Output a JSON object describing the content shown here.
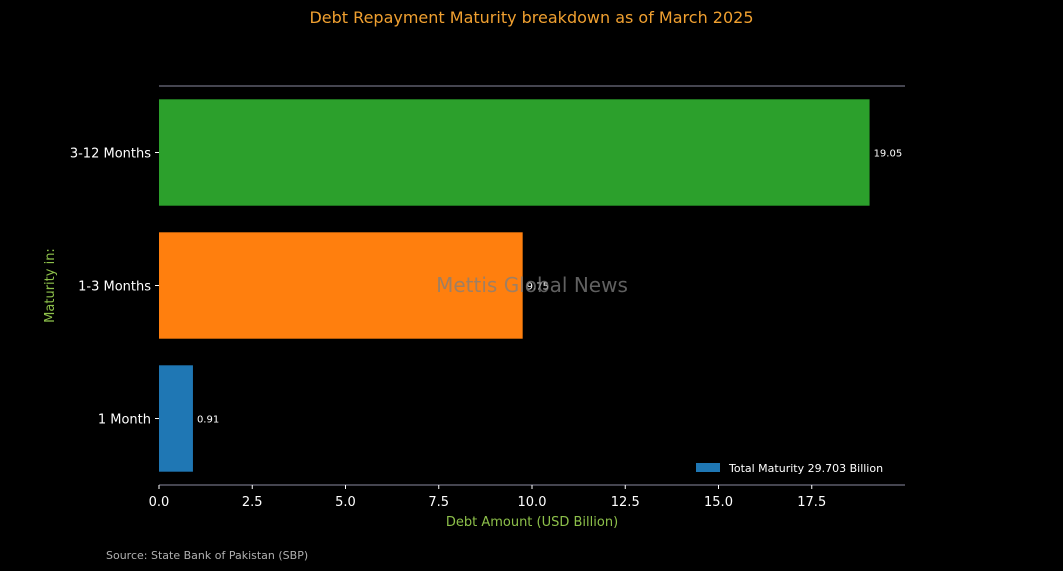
{
  "title": "Debt Repayment Maturity breakdown as of March 2025",
  "source": "Source: State Bank of Pakistan (SBP)",
  "watermark": "Mettis Global News",
  "colors": {
    "background": "#000000",
    "title": "#f0a030",
    "axis_label": "#8dc04a",
    "text": "#ffffff",
    "axis_line": "#8a8aa0",
    "watermark": "#808080"
  },
  "chart_data": {
    "type": "bar",
    "orientation": "horizontal",
    "title": "Debt Repayment Maturity breakdown as of March 2025",
    "xlabel": "Debt Amount (USD Billion)",
    "ylabel": "Maturity in:",
    "categories": [
      "1 Month",
      "1-3 Months",
      "3-12 Months"
    ],
    "values": [
      0.91,
      9.75,
      19.05
    ],
    "value_labels": [
      "0.91",
      "9.75",
      "19.05"
    ],
    "bar_colors": [
      "#1f77b4",
      "#ff7f0e",
      "#2ca02c"
    ],
    "xlim": [
      0,
      20
    ],
    "xticks": [
      0,
      2.5,
      5,
      7.5,
      10,
      12.5,
      15,
      17.5
    ],
    "xtick_labels": [
      "0.0",
      "2.5",
      "5.0",
      "7.5",
      "10.0",
      "12.5",
      "15.0",
      "17.5"
    ],
    "legend": {
      "placement": "lower-right",
      "entries": [
        {
          "label": "Total Maturity 29.703 Billion",
          "color": "#1f77b4"
        }
      ]
    },
    "grid": false
  }
}
